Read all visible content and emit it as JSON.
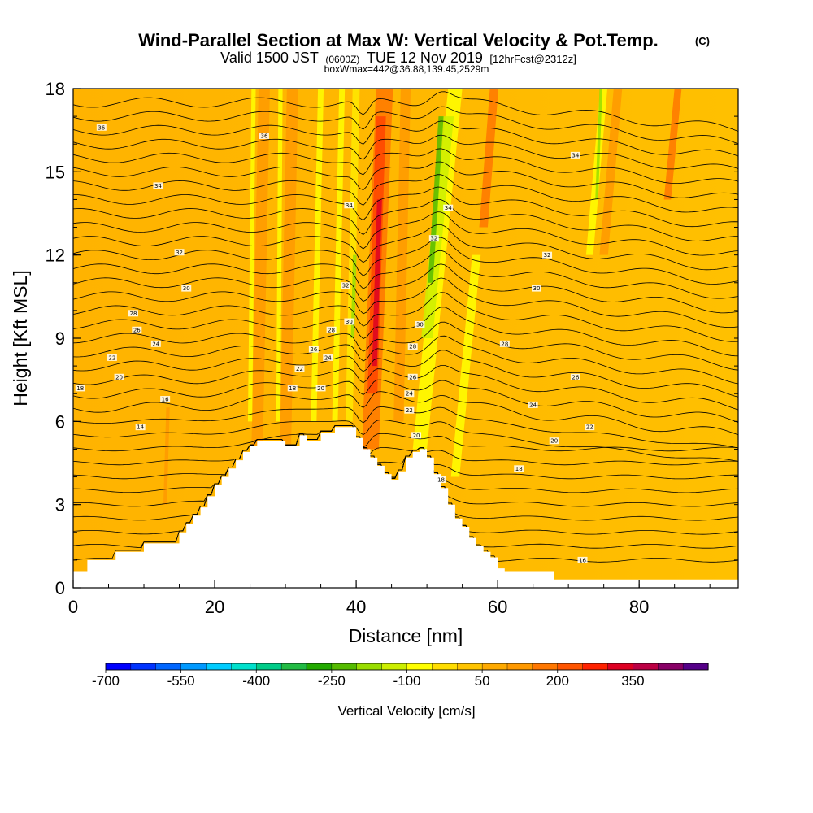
{
  "title": "Wind-Parallel Section at Max W: Vertical Velocity & Pot.Temp.",
  "title_mark": "(C)",
  "subtitle_a": "Valid 1500 JST",
  "subtitle_b": "(0600Z)",
  "subtitle_c": "TUE 12 Nov 2019",
  "subtitle_d": "[12hrFcst@2312z]",
  "subtitle_line3": "boxWmax=442@36.88,139.45,2529m",
  "chart_data": {
    "type": "heatmap",
    "xlabel": "Distance [nm]",
    "ylabel": "Height [Kft MSL]",
    "xlim": [
      0,
      94
    ],
    "ylim": [
      0,
      18
    ],
    "x_ticks": [
      0,
      20,
      40,
      60,
      80
    ],
    "y_ticks": [
      0,
      3,
      6,
      9,
      12,
      15,
      18
    ],
    "terrain_kft": [
      [
        0,
        0.6
      ],
      [
        2,
        0.6
      ],
      [
        2,
        1.0
      ],
      [
        6,
        1.0
      ],
      [
        6,
        1.3
      ],
      [
        10,
        1.3
      ],
      [
        10,
        1.6
      ],
      [
        15,
        1.6
      ],
      [
        15,
        2.0
      ],
      [
        16,
        2.0
      ],
      [
        16,
        2.3
      ],
      [
        17,
        2.3
      ],
      [
        17,
        2.6
      ],
      [
        18,
        2.6
      ],
      [
        18,
        2.9
      ],
      [
        19,
        2.9
      ],
      [
        19,
        3.3
      ],
      [
        20,
        3.3
      ],
      [
        20,
        3.7
      ],
      [
        21,
        3.7
      ],
      [
        21,
        4.0
      ],
      [
        22,
        4.0
      ],
      [
        22,
        4.3
      ],
      [
        23,
        4.3
      ],
      [
        23,
        4.6
      ],
      [
        24,
        4.6
      ],
      [
        24,
        4.9
      ],
      [
        25,
        4.9
      ],
      [
        25,
        5.1
      ],
      [
        26,
        5.1
      ],
      [
        26,
        5.3
      ],
      [
        30,
        5.3
      ],
      [
        30,
        5.1
      ],
      [
        32,
        5.1
      ],
      [
        32,
        5.5
      ],
      [
        33,
        5.5
      ],
      [
        33,
        5.3
      ],
      [
        35,
        5.3
      ],
      [
        35,
        5.6
      ],
      [
        37,
        5.6
      ],
      [
        37,
        5.8
      ],
      [
        40,
        5.8
      ],
      [
        40,
        5.4
      ],
      [
        41,
        5.4
      ],
      [
        41,
        5.0
      ],
      [
        42,
        5.0
      ],
      [
        42,
        4.7
      ],
      [
        43,
        4.7
      ],
      [
        43,
        4.4
      ],
      [
        44,
        4.4
      ],
      [
        44,
        4.1
      ],
      [
        45,
        4.1
      ],
      [
        45,
        3.9
      ],
      [
        46,
        3.9
      ],
      [
        46,
        4.2
      ],
      [
        47,
        4.2
      ],
      [
        47,
        4.7
      ],
      [
        48,
        4.7
      ],
      [
        48,
        4.9
      ],
      [
        49,
        4.9
      ],
      [
        49,
        5.0
      ],
      [
        50,
        5.0
      ],
      [
        50,
        4.7
      ],
      [
        51,
        4.7
      ],
      [
        51,
        4.1
      ],
      [
        52,
        4.1
      ],
      [
        52,
        3.6
      ],
      [
        53,
        3.6
      ],
      [
        53,
        3.0
      ],
      [
        54,
        3.0
      ],
      [
        54,
        2.5
      ],
      [
        55,
        2.5
      ],
      [
        55,
        2.2
      ],
      [
        56,
        2.2
      ],
      [
        56,
        1.8
      ],
      [
        57,
        1.8
      ],
      [
        57,
        1.5
      ],
      [
        58,
        1.5
      ],
      [
        58,
        1.3
      ],
      [
        59,
        1.3
      ],
      [
        59,
        1.1
      ],
      [
        60,
        1.1
      ],
      [
        60,
        0.7
      ],
      [
        61,
        0.7
      ],
      [
        61,
        0.6
      ],
      [
        62,
        0.6
      ],
      [
        62,
        0.6
      ],
      [
        68,
        0.6
      ],
      [
        68,
        0.3
      ],
      [
        94,
        0.3
      ]
    ],
    "theta_levels": [
      14,
      16,
      18,
      20,
      22,
      24,
      26,
      28,
      30,
      32,
      34,
      36
    ],
    "contour_labels": [
      {
        "text": "36",
        "x": 4,
        "y": 16.6
      },
      {
        "text": "36",
        "x": 27,
        "y": 16.3
      },
      {
        "text": "34",
        "x": 12,
        "y": 14.5
      },
      {
        "text": "32",
        "x": 15,
        "y": 12.1
      },
      {
        "text": "30",
        "x": 16,
        "y": 10.8
      },
      {
        "text": "28",
        "x": 8.5,
        "y": 9.9
      },
      {
        "text": "26",
        "x": 9,
        "y": 9.3
      },
      {
        "text": "24",
        "x": 11.7,
        "y": 8.8
      },
      {
        "text": "22",
        "x": 5.5,
        "y": 8.3
      },
      {
        "text": "20",
        "x": 6.5,
        "y": 7.6
      },
      {
        "text": "18",
        "x": 1,
        "y": 7.2
      },
      {
        "text": "16",
        "x": 13,
        "y": 6.8
      },
      {
        "text": "14",
        "x": 9.5,
        "y": 5.8
      },
      {
        "text": "34",
        "x": 39,
        "y": 13.8
      },
      {
        "text": "32",
        "x": 38.5,
        "y": 10.9
      },
      {
        "text": "30",
        "x": 39,
        "y": 9.6
      },
      {
        "text": "28",
        "x": 36.5,
        "y": 9.3
      },
      {
        "text": "26",
        "x": 34,
        "y": 8.6
      },
      {
        "text": "24",
        "x": 36,
        "y": 8.3
      },
      {
        "text": "22",
        "x": 32,
        "y": 7.9
      },
      {
        "text": "20",
        "x": 35,
        "y": 7.2
      },
      {
        "text": "18",
        "x": 31,
        "y": 7.2
      },
      {
        "text": "34",
        "x": 53,
        "y": 13.7
      },
      {
        "text": "32",
        "x": 51,
        "y": 12.6
      },
      {
        "text": "30",
        "x": 49,
        "y": 9.5
      },
      {
        "text": "28",
        "x": 48,
        "y": 8.7
      },
      {
        "text": "26",
        "x": 48,
        "y": 7.6
      },
      {
        "text": "24",
        "x": 47.5,
        "y": 7.0
      },
      {
        "text": "22",
        "x": 47.5,
        "y": 6.4
      },
      {
        "text": "20",
        "x": 48.5,
        "y": 5.5
      },
      {
        "text": "18",
        "x": 52,
        "y": 3.9
      },
      {
        "text": "34",
        "x": 71,
        "y": 15.6
      },
      {
        "text": "32",
        "x": 67,
        "y": 12.0
      },
      {
        "text": "30",
        "x": 65.5,
        "y": 10.8
      },
      {
        "text": "28",
        "x": 61,
        "y": 8.8
      },
      {
        "text": "26",
        "x": 71,
        "y": 7.6
      },
      {
        "text": "24",
        "x": 65,
        "y": 6.6
      },
      {
        "text": "22",
        "x": 73,
        "y": 5.8
      },
      {
        "text": "20",
        "x": 68,
        "y": 5.3
      },
      {
        "text": "18",
        "x": 63,
        "y": 4.3
      },
      {
        "text": "16",
        "x": 72,
        "y": 1.0
      }
    ],
    "colorbar": {
      "title": "Vertical Velocity [cm/s]",
      "tick_labels": [
        "-700",
        "-550",
        "-400",
        "-250",
        "-100",
        "50",
        "200",
        "350"
      ],
      "colors": [
        "#0000ff",
        "#0033ff",
        "#0066ff",
        "#0099ff",
        "#00ccff",
        "#00e0cc",
        "#00cc88",
        "#22bb44",
        "#22aa00",
        "#55bb00",
        "#99dd00",
        "#ccee00",
        "#ffff00",
        "#ffdd00",
        "#ffc400",
        "#ffaa00",
        "#ff9900",
        "#ff7700",
        "#ff5500",
        "#ff2200",
        "#dd0022",
        "#bb0044",
        "#880066",
        "#550088"
      ]
    }
  }
}
